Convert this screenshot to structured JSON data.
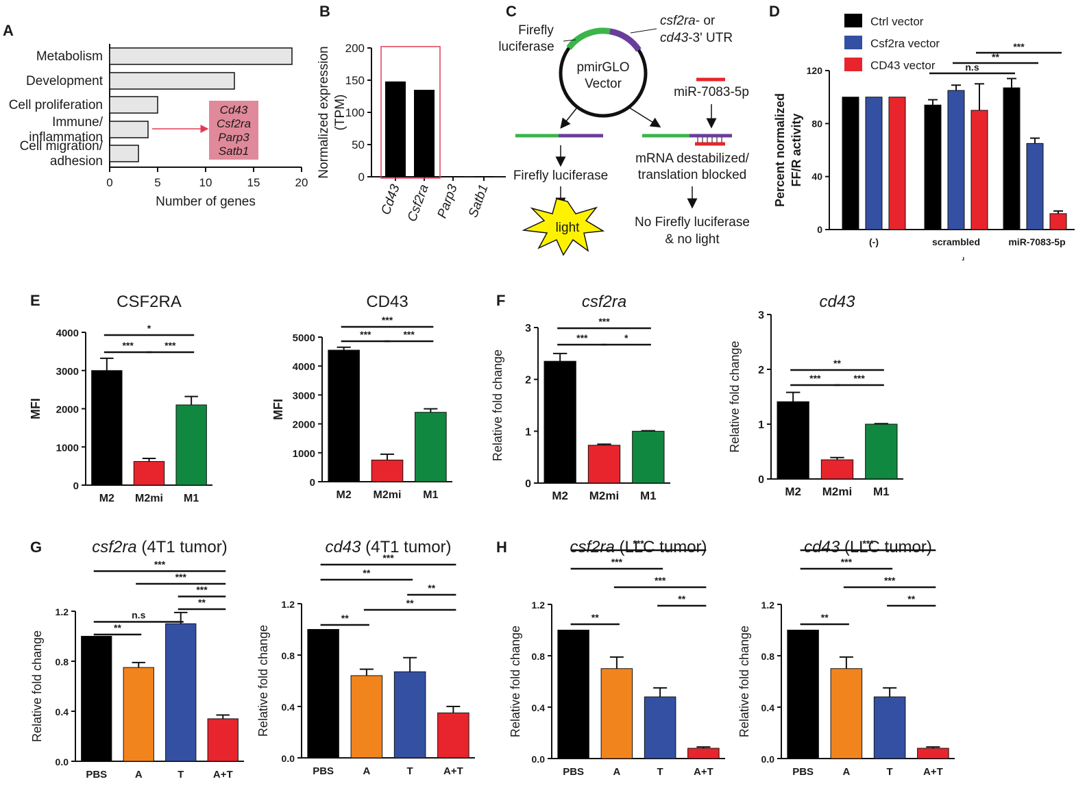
{
  "panel_labels": {
    "A": "A",
    "B": "B",
    "C": "C",
    "D": "D",
    "E": "E",
    "F": "F",
    "G": "G",
    "H": "H"
  },
  "chart_data": [
    {
      "id": "A",
      "type": "bar",
      "orientation": "horizontal",
      "categories": [
        "Metabolism",
        "Development",
        "Cell proliferation",
        "Immune/ inflammation",
        "Cell migration/ adhesion"
      ],
      "category_lines": [
        [
          "Metabolism"
        ],
        [
          "Development"
        ],
        [
          "Cell proliferation"
        ],
        [
          "Immune/",
          "inflammation"
        ],
        [
          "Cell migration/",
          "adhesion"
        ]
      ],
      "values": [
        19,
        13,
        5,
        4,
        3
      ],
      "xlabel": "Number of genes",
      "xlim": [
        0,
        20
      ],
      "xticks": [
        0,
        5,
        10,
        15,
        20
      ],
      "bar_color": "#e6e6e6",
      "annotation": {
        "genes": [
          "Cd43",
          "Csf2ra",
          "Parp3",
          "Satb1"
        ],
        "color": "#e0899a",
        "arrow_color": "#e03b55"
      }
    },
    {
      "id": "B",
      "type": "bar",
      "categories": [
        "Cd43",
        "Csf2ra",
        "Parp3",
        "Satb1"
      ],
      "values": [
        148,
        135,
        1,
        1
      ],
      "ylabel_lines": [
        "Normalized expression",
        "(TPM)"
      ],
      "ylim": [
        0,
        200
      ],
      "yticks": [
        0,
        50,
        100,
        150,
        200
      ],
      "bar_color": "#000000",
      "highlight_box_color": "#e03b55"
    },
    {
      "id": "D",
      "type": "bar",
      "groups": [
        "(-)",
        "scrambled",
        "miR-7083-5p"
      ],
      "group_footnote": "⸥",
      "series": [
        {
          "name": "Ctrl vector",
          "color": "#000000",
          "values": [
            100,
            94,
            107
          ],
          "errors": [
            0,
            4,
            7
          ]
        },
        {
          "name": "Csf2ra vector",
          "color": "#3450a2",
          "values": [
            100,
            105,
            65
          ],
          "errors": [
            0,
            4,
            4
          ]
        },
        {
          "name": "CD43 vector",
          "color": "#e8252d",
          "values": [
            100,
            90,
            12
          ],
          "errors": [
            0,
            20,
            2
          ]
        }
      ],
      "ylabel_lines": [
        "Percent normalized",
        "FF/R activity"
      ],
      "ylim": [
        0,
        120
      ],
      "yticks": [
        0,
        40,
        80,
        120
      ],
      "significance": [
        {
          "label": "n.s",
          "from": [
            1,
            0
          ],
          "to": [
            2,
            0
          ],
          "level": 0
        },
        {
          "label": "**",
          "from": [
            1,
            1
          ],
          "to": [
            2,
            1
          ],
          "level": 1
        },
        {
          "label": "***",
          "from": [
            1,
            2
          ],
          "to": [
            2,
            2
          ],
          "level": 2
        }
      ]
    },
    {
      "id": "E1",
      "type": "bar",
      "title": "CSF2RA",
      "categories": [
        "M2",
        "M2mi",
        "M1"
      ],
      "values": [
        3000,
        620,
        2100
      ],
      "errors": [
        320,
        80,
        220
      ],
      "colors": [
        "#000000",
        "#e8252d",
        "#118840"
      ],
      "ylabel": "MFI",
      "ylim": [
        0,
        4000
      ],
      "yticks": [
        0,
        1000,
        2000,
        3000,
        4000
      ],
      "significance": [
        {
          "label": "***",
          "from": 0,
          "to": 1,
          "level": 1
        },
        {
          "label": "***",
          "from": 1,
          "to": 2,
          "level": 1
        },
        {
          "label": "*",
          "from": 0,
          "to": 2,
          "level": 2
        }
      ]
    },
    {
      "id": "E2",
      "type": "bar",
      "title": "CD43",
      "categories": [
        "M2",
        "M2mi",
        "M1"
      ],
      "values": [
        4550,
        750,
        2400
      ],
      "errors": [
        100,
        200,
        120
      ],
      "colors": [
        "#000000",
        "#e8252d",
        "#118840"
      ],
      "ylabel": "MFI",
      "ylim": [
        0,
        5000
      ],
      "yticks": [
        0,
        1000,
        2000,
        3000,
        4000,
        5000
      ],
      "significance": [
        {
          "label": "***",
          "from": 0,
          "to": 1,
          "level": 1
        },
        {
          "label": "***",
          "from": 1,
          "to": 2,
          "level": 1
        },
        {
          "label": "***",
          "from": 0,
          "to": 2,
          "level": 2
        }
      ]
    },
    {
      "id": "F1",
      "type": "bar",
      "title": "csf2ra",
      "title_italic": true,
      "categories": [
        "M2",
        "M2mi",
        "M1"
      ],
      "values": [
        2.35,
        0.73,
        1.0
      ],
      "errors": [
        0.15,
        0.02,
        0.01
      ],
      "colors": [
        "#000000",
        "#e8252d",
        "#118840"
      ],
      "ylabel": "Relative fold change",
      "ylim": [
        0,
        3
      ],
      "yticks": [
        0,
        1,
        2,
        3
      ],
      "significance": [
        {
          "label": "***",
          "from": 0,
          "to": 1,
          "level": 1
        },
        {
          "label": "*",
          "from": 1,
          "to": 2,
          "level": 1
        },
        {
          "label": "***",
          "from": 0,
          "to": 2,
          "level": 2
        }
      ]
    },
    {
      "id": "F2",
      "type": "bar",
      "title": "cd43",
      "title_italic": true,
      "categories": [
        "M2",
        "M2mi",
        "M1"
      ],
      "values": [
        1.41,
        0.35,
        1.0
      ],
      "errors": [
        0.17,
        0.04,
        0.01
      ],
      "colors": [
        "#000000",
        "#e8252d",
        "#118840"
      ],
      "ylabel": "Relative fold change",
      "ylim": [
        0,
        3
      ],
      "yticks": [
        0,
        1,
        2,
        3
      ],
      "significance": [
        {
          "label": "***",
          "from": 0,
          "to": 1,
          "level": 1
        },
        {
          "label": "***",
          "from": 1,
          "to": 2,
          "level": 1
        },
        {
          "label": "**",
          "from": 0,
          "to": 2,
          "level": 2
        }
      ]
    },
    {
      "id": "G1",
      "type": "bar",
      "title": "csf2ra",
      "title_suffix": " (4T1 tumor)",
      "categories": [
        "PBS",
        "A",
        "T",
        "A+T"
      ],
      "values": [
        1.0,
        0.75,
        1.1,
        0.34
      ],
      "errors": [
        0.0,
        0.04,
        0.09,
        0.03
      ],
      "colors": [
        "#000000",
        "#f2841e",
        "#3450a2",
        "#e8252d"
      ],
      "ylabel": "Relative fold change",
      "ylim": [
        0,
        1.2
      ],
      "yticks": [
        0.0,
        0.4,
        0.8,
        1.2
      ],
      "significance": [
        {
          "label": "**",
          "from": 0,
          "to": 1,
          "level": 1
        },
        {
          "label": "n.s",
          "from": 0,
          "to": 2,
          "level": 2
        },
        {
          "label": "**",
          "from": 2,
          "to": 3,
          "level": 3
        },
        {
          "label": "***",
          "from": 2,
          "to": 3,
          "level": 4
        },
        {
          "label": "***",
          "from": 1,
          "to": 3,
          "level": 5
        },
        {
          "label": "***",
          "from": 0,
          "to": 3,
          "level": 6
        }
      ]
    },
    {
      "id": "G2",
      "type": "bar",
      "title": "cd43",
      "title_suffix": " (4T1 tumor)",
      "categories": [
        "PBS",
        "A",
        "T",
        "A+T"
      ],
      "values": [
        1.0,
        0.64,
        0.67,
        0.35
      ],
      "errors": [
        0.0,
        0.05,
        0.11,
        0.05
      ],
      "colors": [
        "#000000",
        "#f2841e",
        "#3450a2",
        "#e8252d"
      ],
      "ylabel": "Relative fold change",
      "ylim": [
        0,
        1.2
      ],
      "yticks": [
        0.0,
        0.4,
        0.8,
        1.2
      ],
      "significance": [
        {
          "label": "**",
          "from": 0,
          "to": 1,
          "level": 1
        },
        {
          "label": "**",
          "from": 1,
          "to": 3,
          "level": 2
        },
        {
          "label": "**",
          "from": 2,
          "to": 3,
          "level": 3
        },
        {
          "label": "**",
          "from": 0,
          "to": 2,
          "level": 4
        },
        {
          "label": "***",
          "from": 0,
          "to": 3,
          "level": 5
        }
      ]
    },
    {
      "id": "H1",
      "type": "bar",
      "title": "csf2ra",
      "title_suffix": " (LLC tumor)",
      "categories": [
        "PBS",
        "A",
        "T",
        "A+T"
      ],
      "values": [
        1.0,
        0.7,
        0.48,
        0.08
      ],
      "errors": [
        0.0,
        0.09,
        0.07,
        0.01
      ],
      "colors": [
        "#000000",
        "#f2841e",
        "#3450a2",
        "#e8252d"
      ],
      "ylabel": "Relative fold change",
      "ylim": [
        0,
        1.2
      ],
      "yticks": [
        0.0,
        0.4,
        0.8,
        1.2
      ],
      "significance": [
        {
          "label": "**",
          "from": 0,
          "to": 1,
          "level": 1
        },
        {
          "label": "**",
          "from": 2,
          "to": 3,
          "level": 2
        },
        {
          "label": "***",
          "from": 1,
          "to": 3,
          "level": 3
        },
        {
          "label": "***",
          "from": 0,
          "to": 2,
          "level": 4
        },
        {
          "label": "***",
          "from": 0,
          "to": 3,
          "level": 5
        }
      ]
    },
    {
      "id": "H2",
      "type": "bar",
      "title": "cd43",
      "title_suffix": " (LLC tumor)",
      "categories": [
        "PBS",
        "A",
        "T",
        "A+T"
      ],
      "values": [
        1.0,
        0.7,
        0.48,
        0.08
      ],
      "errors": [
        0.0,
        0.09,
        0.07,
        0.01
      ],
      "colors": [
        "#000000",
        "#f2841e",
        "#3450a2",
        "#e8252d"
      ],
      "ylabel": "Relative fold change",
      "ylim": [
        0,
        1.2
      ],
      "yticks": [
        0.0,
        0.4,
        0.8,
        1.2
      ],
      "significance": [
        {
          "label": "**",
          "from": 0,
          "to": 1,
          "level": 1
        },
        {
          "label": "**",
          "from": 2,
          "to": 3,
          "level": 2
        },
        {
          "label": "***",
          "from": 1,
          "to": 3,
          "level": 3
        },
        {
          "label": "***",
          "from": 0,
          "to": 2,
          "level": 4
        },
        {
          "label": "***",
          "from": 0,
          "to": 3,
          "level": 5
        }
      ]
    }
  ],
  "diagram_C": {
    "firefly_label": [
      "Firefly",
      "luciferase"
    ],
    "utr_label_1": "csf2ra",
    "utr_label_1b": "- or",
    "utr_label_2": "cd43",
    "utr_label_2b": "-3' UTR",
    "vector_label": [
      "pmirGLO",
      "Vector"
    ],
    "mirna_label": "miR-7083-5p",
    "left_outcome": "Firefly luciferase",
    "light_label": "light",
    "right_outcome": [
      "mRNA destabilized/",
      "translation blocked"
    ],
    "final_outcome": [
      "No Firefly luciferase",
      "& no light"
    ],
    "colors": {
      "green": "#3bb54a",
      "purple": "#6a3d9a",
      "red": "#e8252d",
      "yellow": "#fff200"
    }
  }
}
